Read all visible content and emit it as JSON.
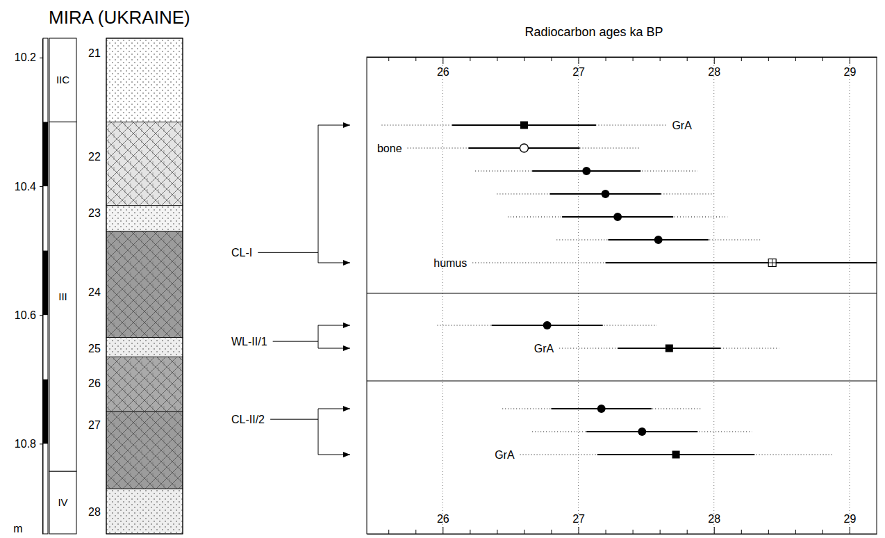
{
  "chart_data": [
    {
      "type": "section",
      "title": "MIRA (UKRAINE)",
      "ylim": [
        10.17,
        10.94
      ],
      "yticks": [
        10.2,
        10.4,
        10.6,
        10.8
      ],
      "y_label": "m",
      "depth_scale_black": [
        [
          10.3,
          10.4
        ],
        [
          10.5,
          10.6
        ],
        [
          10.7,
          10.8
        ]
      ],
      "units": [
        {
          "label": "IIC",
          "top": 10.17,
          "bottom": 10.3
        },
        {
          "label": "III",
          "top": 10.3,
          "bottom": 10.843
        },
        {
          "label": "IV",
          "top": 10.843,
          "bottom": 10.94
        }
      ],
      "layers": [
        {
          "label": "21",
          "top": 10.17,
          "bottom": 10.3,
          "label_depth": 10.193,
          "color": "#ffffff"
        },
        {
          "label": "22",
          "top": 10.3,
          "bottom": 10.43,
          "label_depth": 10.354,
          "color": "#e4e4e4"
        },
        {
          "label": "23",
          "top": 10.43,
          "bottom": 10.47,
          "label_depth": 10.441,
          "color": "#f4f4f4"
        },
        {
          "label": "24",
          "top": 10.47,
          "bottom": 10.635,
          "label_depth": 10.565,
          "color": "#9c9c9c"
        },
        {
          "label": "25",
          "top": 10.635,
          "bottom": 10.665,
          "label_depth": 10.652,
          "color": "#eeeeee"
        },
        {
          "label": "26",
          "top": 10.665,
          "bottom": 10.75,
          "label_depth": 10.706,
          "color": "#aaaaaa"
        },
        {
          "label": "27",
          "top": 10.75,
          "bottom": 10.87,
          "label_depth": 10.771,
          "color": "#9c9c9c"
        },
        {
          "label": "28",
          "top": 10.87,
          "bottom": 10.94,
          "label_depth": 10.906,
          "color": "#eeeeee"
        }
      ],
      "cultural_layer_depths": [
        10.503,
        10.641,
        10.762
      ]
    },
    {
      "type": "scatter",
      "title": "Radiocarbon ages ka BP",
      "xlim": [
        25.44,
        29.2
      ],
      "xticks": [
        26,
        27,
        28,
        29
      ],
      "minor_xticks": [
        25.6,
        25.8,
        26.2,
        26.4,
        26.6,
        26.8,
        27.2,
        27.4,
        27.6,
        27.8,
        28.2,
        28.4,
        28.6,
        28.8
      ],
      "grid": true,
      "color": "#000000",
      "series": [
        {
          "name": "CL-I",
          "values": [
            26.6,
            26.6,
            27.06,
            27.2,
            27.29,
            27.59,
            28.43
          ],
          "error_1s": [
            0.53,
            0.41,
            0.4,
            0.41,
            0.41,
            0.37,
            1.23
          ],
          "error_2s": [
            1.05,
            0.86,
            0.82,
            0.8,
            0.81,
            0.75,
            2.21
          ],
          "marker": [
            "square",
            "circle_open",
            "circle",
            "circle",
            "circle",
            "circle",
            "square_plus"
          ],
          "point_labels": [
            "GrA",
            "bone",
            null,
            null,
            null,
            null,
            "humus"
          ]
        },
        {
          "name": "WL-II/1",
          "values": [
            26.77,
            27.67
          ],
          "error_1s": [
            0.41,
            0.38
          ],
          "error_2s": [
            0.81,
            0.81
          ],
          "marker": [
            "circle",
            "square"
          ],
          "point_labels": [
            null,
            "GrA"
          ]
        },
        {
          "name": "CL-II/2",
          "values": [
            27.17,
            27.47,
            27.72
          ],
          "error_1s": [
            0.37,
            0.41,
            0.58
          ],
          "error_2s": [
            0.73,
            0.81,
            1.15
          ],
          "marker": [
            "circle",
            "circle",
            "square"
          ],
          "point_labels": [
            null,
            null,
            "GrA"
          ]
        }
      ]
    }
  ]
}
